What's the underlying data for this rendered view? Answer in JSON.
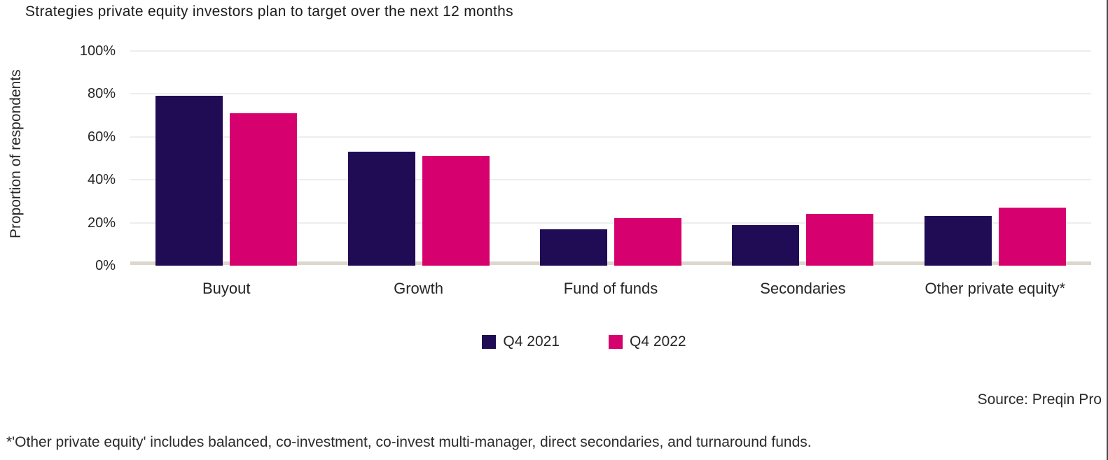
{
  "title": "Strategies private equity investors plan to target over the next 12 months",
  "source": "Source: Preqin Pro",
  "footnote": "*'Other private equity' includes balanced, co-investment, co-invest multi-manager, direct secondaries, and turnaround funds.",
  "colors": {
    "q4_2021": "#1F0C55",
    "q4_2022": "#D6006E",
    "gridline": "#efeded",
    "baseline": "#DCD6CC",
    "text": "#262626",
    "right_border": "#4a4a4a"
  },
  "chart_data": {
    "type": "bar",
    "title": "Strategies private equity investors plan to target over the next 12 months",
    "xlabel": "",
    "ylabel": "Proportion of respondents",
    "ylim": [
      0,
      100
    ],
    "grid": true,
    "legend_position": "bottom",
    "ytick_labels": [
      "100%",
      "80%",
      "60%",
      "40%",
      "20%",
      "0%"
    ],
    "categories": [
      "Buyout",
      "Growth",
      "Fund of funds",
      "Secondaries",
      "Other private equity*"
    ],
    "series": [
      {
        "name": "Q4 2021",
        "color": "#1F0C55",
        "values": [
          79,
          53,
          17,
          19,
          23
        ]
      },
      {
        "name": "Q4 2022",
        "color": "#D6006E",
        "values": [
          71,
          51,
          22,
          24,
          27
        ]
      }
    ]
  }
}
